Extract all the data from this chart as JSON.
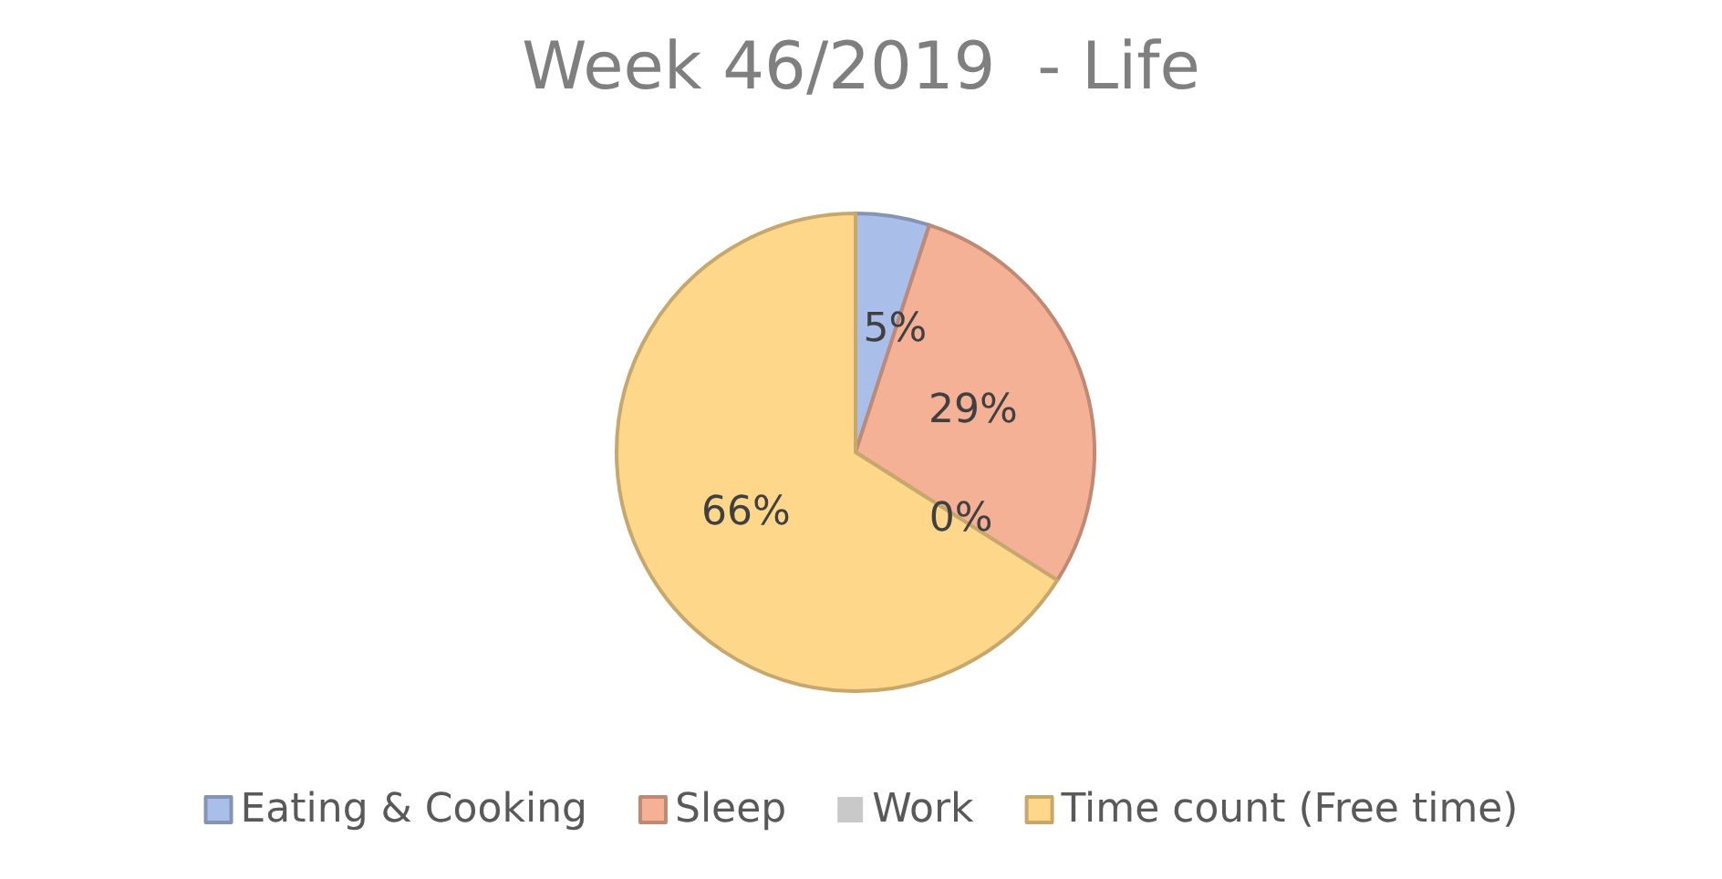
{
  "chart_data": {
    "type": "pie",
    "title": "Week 46/2019  - Life",
    "categories": [
      "Eating & Cooking",
      "Sleep",
      "Work",
      "Time count (Free time)"
    ],
    "values": [
      5,
      29,
      0,
      66
    ],
    "colors": [
      "#a9bee8",
      "#f4b196",
      "#c9c9c9",
      "#ffd78a"
    ],
    "value_labels": [
      "5%",
      "29%",
      "0%",
      "66%"
    ],
    "legend": "bottom"
  }
}
